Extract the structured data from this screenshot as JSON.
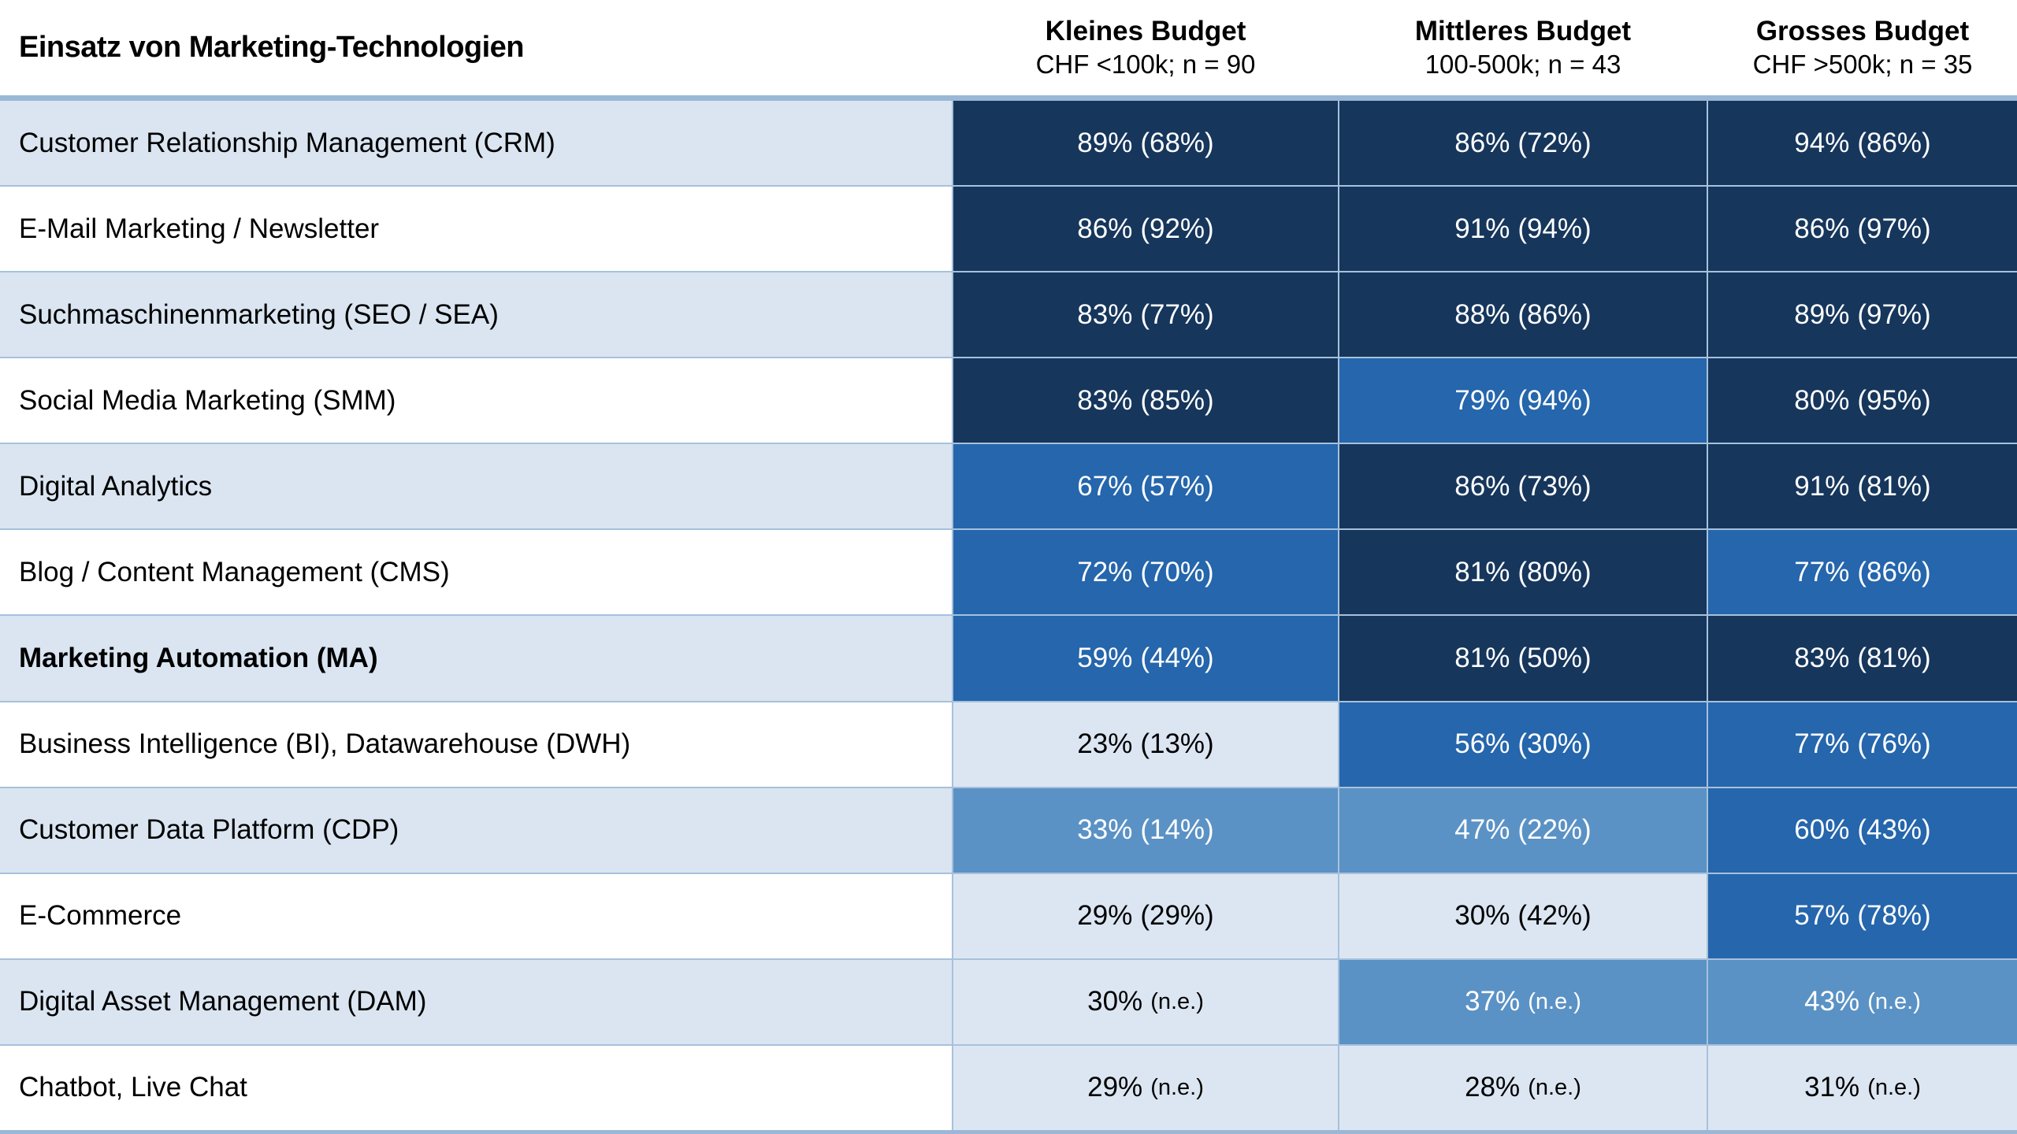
{
  "colors": {
    "dark": "#16365c",
    "medium": "#2566ac",
    "midlight": "#5b92c5",
    "pale": "#dce6f2",
    "label_alt": "#dae5f1",
    "grid": "#a7c1dc",
    "band": "#9ab7d6",
    "page_bg": "#ffffff",
    "text_light": "#ffffff",
    "text_dark": "#000000"
  },
  "header": {
    "title": "Einsatz von Marketing-Technologien",
    "columns": [
      {
        "label": "Kleines Budget",
        "sub": "CHF <100k; n = 90"
      },
      {
        "label": "Mittleres Budget",
        "sub": "100-500k; n = 43"
      },
      {
        "label": "Grosses Budget",
        "sub": "CHF >500k; n = 35"
      }
    ]
  },
  "rows": [
    {
      "label": "Customer Relationship Management (CRM)",
      "bold": false,
      "cells": [
        {
          "v": "89%",
          "p": "(68%)",
          "tone": "dark",
          "small": false
        },
        {
          "v": "86%",
          "p": "(72%)",
          "tone": "dark",
          "small": false
        },
        {
          "v": "94%",
          "p": "(86%)",
          "tone": "dark",
          "small": false
        }
      ]
    },
    {
      "label": "E-Mail Marketing / Newsletter",
      "bold": false,
      "cells": [
        {
          "v": "86%",
          "p": "(92%)",
          "tone": "dark",
          "small": false
        },
        {
          "v": "91%",
          "p": "(94%)",
          "tone": "dark",
          "small": false
        },
        {
          "v": "86%",
          "p": "(97%)",
          "tone": "dark",
          "small": false
        }
      ]
    },
    {
      "label": "Suchmaschinenmarketing (SEO / SEA)",
      "bold": false,
      "cells": [
        {
          "v": "83%",
          "p": "(77%)",
          "tone": "dark",
          "small": false
        },
        {
          "v": "88%",
          "p": "(86%)",
          "tone": "dark",
          "small": false
        },
        {
          "v": "89%",
          "p": "(97%)",
          "tone": "dark",
          "small": false
        }
      ]
    },
    {
      "label": "Social Media Marketing (SMM)",
      "bold": false,
      "cells": [
        {
          "v": "83%",
          "p": "(85%)",
          "tone": "dark",
          "small": false
        },
        {
          "v": "79%",
          "p": "(94%)",
          "tone": "medium",
          "small": false
        },
        {
          "v": "80%",
          "p": "(95%)",
          "tone": "dark",
          "small": false
        }
      ]
    },
    {
      "label": "Digital Analytics",
      "bold": false,
      "cells": [
        {
          "v": "67%",
          "p": "(57%)",
          "tone": "medium",
          "small": false
        },
        {
          "v": "86%",
          "p": "(73%)",
          "tone": "dark",
          "small": false
        },
        {
          "v": "91%",
          "p": "(81%)",
          "tone": "dark",
          "small": false
        }
      ]
    },
    {
      "label": "Blog / Content Management (CMS)",
      "bold": false,
      "cells": [
        {
          "v": "72%",
          "p": "(70%)",
          "tone": "medium",
          "small": false
        },
        {
          "v": "81%",
          "p": "(80%)",
          "tone": "dark",
          "small": false
        },
        {
          "v": "77%",
          "p": "(86%)",
          "tone": "medium",
          "small": false
        }
      ]
    },
    {
      "label": "Marketing Automation (MA)",
      "bold": true,
      "cells": [
        {
          "v": "59%",
          "p": "(44%)",
          "tone": "medium",
          "small": false
        },
        {
          "v": "81%",
          "p": "(50%)",
          "tone": "dark",
          "small": false
        },
        {
          "v": "83%",
          "p": "(81%)",
          "tone": "dark",
          "small": false
        }
      ]
    },
    {
      "label": "Business Intelligence (BI), Datawarehouse (DWH)",
      "bold": false,
      "cells": [
        {
          "v": "23%",
          "p": "(13%)",
          "tone": "pale",
          "small": false
        },
        {
          "v": "56%",
          "p": "(30%)",
          "tone": "medium",
          "small": false
        },
        {
          "v": "77%",
          "p": "(76%)",
          "tone": "medium",
          "small": false
        }
      ]
    },
    {
      "label": "Customer Data Platform (CDP)",
      "bold": false,
      "cells": [
        {
          "v": "33%",
          "p": "(14%)",
          "tone": "midlight",
          "small": false
        },
        {
          "v": "47%",
          "p": "(22%)",
          "tone": "midlight",
          "small": false
        },
        {
          "v": "60%",
          "p": "(43%)",
          "tone": "medium",
          "small": false
        }
      ]
    },
    {
      "label": "E-Commerce",
      "bold": false,
      "cells": [
        {
          "v": "29%",
          "p": "(29%)",
          "tone": "pale",
          "small": false
        },
        {
          "v": "30%",
          "p": "(42%)",
          "tone": "pale",
          "small": false
        },
        {
          "v": "57%",
          "p": "(78%)",
          "tone": "medium",
          "small": false
        }
      ]
    },
    {
      "label": "Digital Asset Management (DAM)",
      "bold": false,
      "cells": [
        {
          "v": "30%",
          "p": "(n.e.)",
          "tone": "pale",
          "small": true
        },
        {
          "v": "37%",
          "p": "(n.e.)",
          "tone": "midlight",
          "small": true
        },
        {
          "v": "43%",
          "p": "(n.e.)",
          "tone": "midlight",
          "small": true
        }
      ]
    },
    {
      "label": "Chatbot, Live Chat",
      "bold": false,
      "cells": [
        {
          "v": "29%",
          "p": "(n.e.)",
          "tone": "pale",
          "small": true
        },
        {
          "v": "28%",
          "p": "(n.e.)",
          "tone": "pale",
          "small": true
        },
        {
          "v": "31%",
          "p": "(n.e.)",
          "tone": "pale",
          "small": true
        }
      ]
    }
  ],
  "chart_data": {
    "type": "heatmap",
    "title": "Einsatz von Marketing-Technologien",
    "columns": [
      "Kleines Budget CHF <100k; n = 90",
      "Mittleres Budget 100-500k; n = 43",
      "Grosses Budget CHF >500k; n = 35"
    ],
    "categories": [
      "Customer Relationship Management (CRM)",
      "E-Mail Marketing / Newsletter",
      "Suchmaschinenmarketing (SEO / SEA)",
      "Social Media Marketing (SMM)",
      "Digital Analytics",
      "Blog / Content Management (CMS)",
      "Marketing Automation (MA)",
      "Business Intelligence (BI), Datawarehouse (DWH)",
      "Customer Data Platform (CDP)",
      "E-Commerce",
      "Digital Asset Management (DAM)",
      "Chatbot, Live Chat"
    ],
    "values_current_pct": [
      [
        89,
        86,
        94
      ],
      [
        86,
        91,
        86
      ],
      [
        83,
        88,
        89
      ],
      [
        83,
        79,
        80
      ],
      [
        67,
        86,
        91
      ],
      [
        72,
        81,
        77
      ],
      [
        59,
        81,
        83
      ],
      [
        23,
        56,
        77
      ],
      [
        33,
        47,
        60
      ],
      [
        29,
        30,
        57
      ],
      [
        30,
        37,
        43
      ],
      [
        29,
        28,
        31
      ]
    ],
    "values_previous_pct": [
      [
        68,
        72,
        86
      ],
      [
        92,
        94,
        97
      ],
      [
        77,
        86,
        97
      ],
      [
        85,
        94,
        95
      ],
      [
        57,
        73,
        81
      ],
      [
        70,
        80,
        86
      ],
      [
        44,
        50,
        81
      ],
      [
        13,
        30,
        76
      ],
      [
        14,
        22,
        43
      ],
      [
        29,
        42,
        78
      ],
      [
        null,
        null,
        null
      ],
      [
        null,
        null,
        null
      ]
    ],
    "not_measured_label": "n.e.",
    "legend_position": "none",
    "grid": true
  }
}
